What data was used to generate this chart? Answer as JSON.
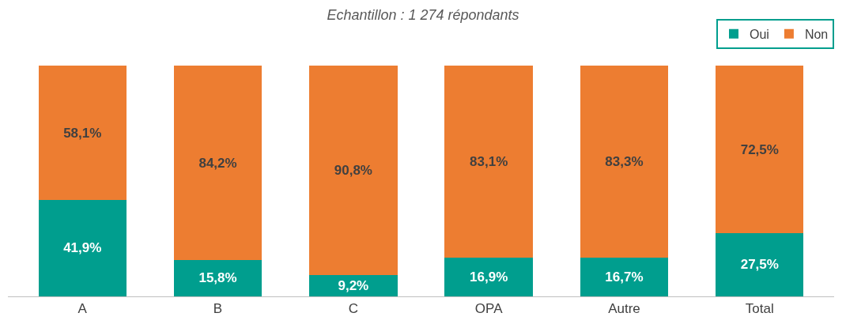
{
  "chart_data": {
    "type": "bar",
    "stacked": true,
    "title": "Echantillon : 1 274 répondants",
    "categories": [
      "A",
      "B",
      "C",
      "OPA",
      "Autre",
      "Total"
    ],
    "series": [
      {
        "name": "Oui",
        "color": "#009e8e",
        "values": [
          41.9,
          15.8,
          9.2,
          16.9,
          16.7,
          27.5
        ],
        "value_labels": [
          "41,9%",
          "15,8%",
          "9,2%",
          "16,9%",
          "16,7%",
          "27,5%"
        ]
      },
      {
        "name": "Non",
        "color": "#ed7d31",
        "values": [
          58.1,
          84.2,
          90.8,
          83.1,
          83.3,
          72.5
        ],
        "value_labels": [
          "58,1%",
          "84,2%",
          "90,8%",
          "83,1%",
          "83,3%",
          "72,5%"
        ]
      }
    ],
    "legend": "top right"
  }
}
